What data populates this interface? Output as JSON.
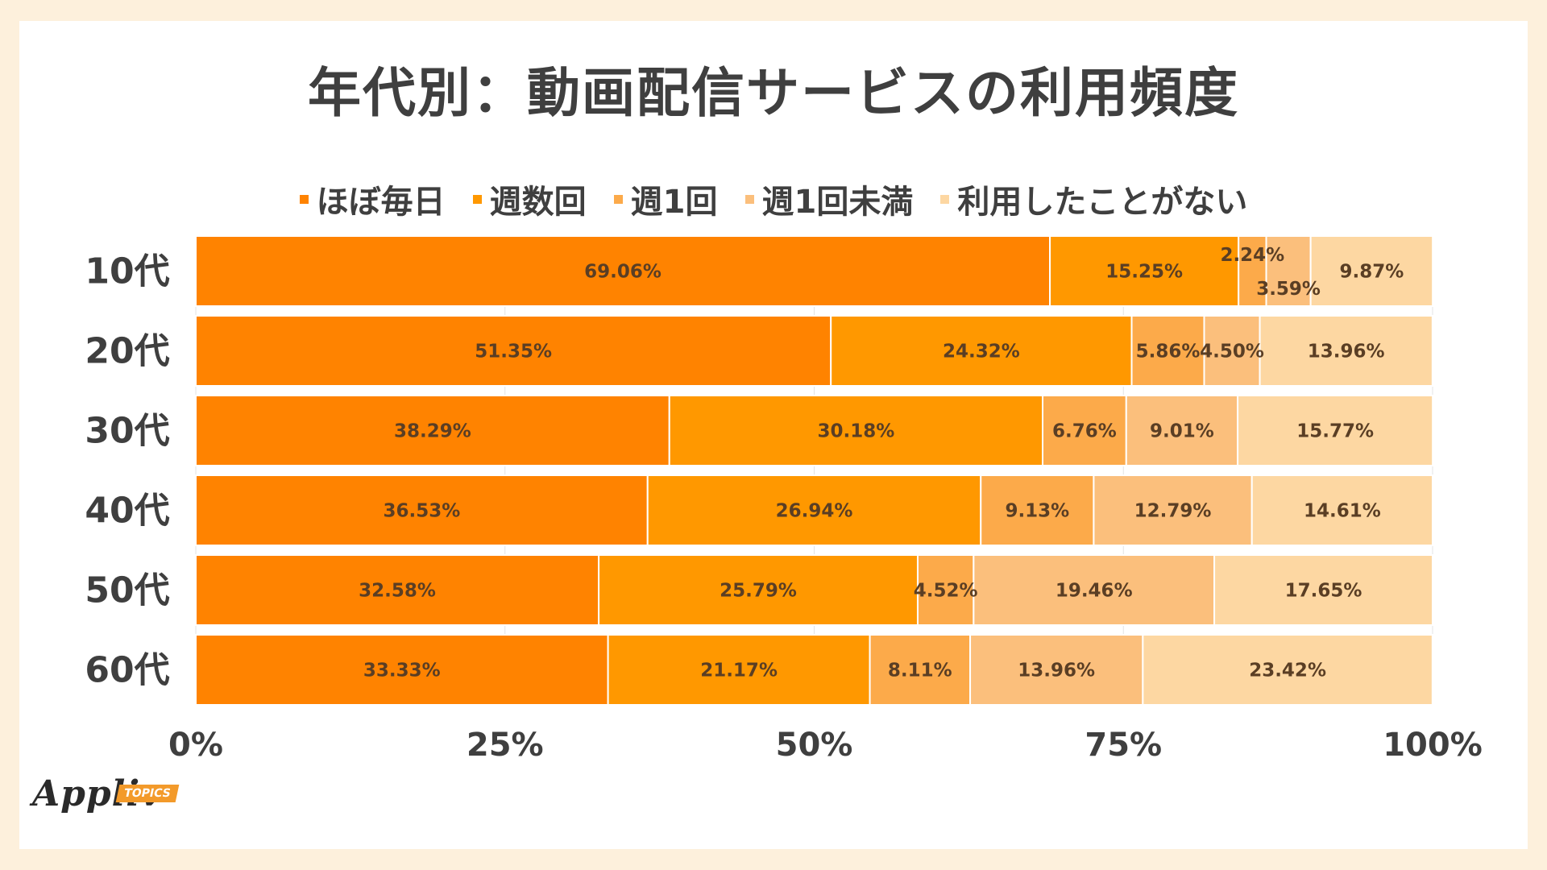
{
  "title": "年代別：動画配信サービスの利用頻度",
  "brand": {
    "logo_text": "Appliv",
    "badge_text": "TOPICS"
  },
  "chart_data": {
    "type": "bar",
    "orientation": "horizontal",
    "stacked": true,
    "title": "年代別：動画配信サービスの利用頻度",
    "categories": [
      "10代",
      "20代",
      "30代",
      "40代",
      "50代",
      "60代"
    ],
    "series": [
      {
        "name": "ほぼ毎日",
        "color": "#ff8300",
        "values": [
          69.06,
          51.35,
          38.29,
          36.53,
          32.58,
          33.33
        ]
      },
      {
        "name": "週数回",
        "color": "#ff9800",
        "values": [
          15.25,
          24.32,
          30.18,
          26.94,
          25.79,
          21.17
        ]
      },
      {
        "name": "週1回",
        "color": "#fcaa4a",
        "values": [
          2.24,
          5.86,
          6.76,
          9.13,
          4.52,
          8.11
        ]
      },
      {
        "name": "週1回未満",
        "color": "#fbbf7c",
        "values": [
          3.59,
          4.5,
          9.01,
          12.79,
          19.46,
          13.96
        ]
      },
      {
        "name": "利用したことがない",
        "color": "#fdd7a2",
        "values": [
          9.87,
          13.96,
          15.77,
          14.61,
          17.65,
          23.42
        ]
      }
    ],
    "data_labels": [
      [
        "69.06%",
        "15.25%",
        "2.24%",
        "3.59%",
        "9.87%"
      ],
      [
        "51.35%",
        "24.32%",
        "5.86%",
        "4.50%",
        "13.96%"
      ],
      [
        "38.29%",
        "30.18%",
        "6.76%",
        "9.01%",
        "15.77%"
      ],
      [
        "36.53%",
        "26.94%",
        "9.13%",
        "12.79%",
        "14.61%"
      ],
      [
        "32.58%",
        "25.79%",
        "4.52%",
        "19.46%",
        "17.65%"
      ],
      [
        "33.33%",
        "21.17%",
        "8.11%",
        "13.96%",
        "23.42%"
      ]
    ],
    "x_ticks": [
      "0%",
      "25%",
      "50%",
      "75%",
      "100%"
    ],
    "xlim": [
      0,
      100
    ],
    "legend_position": "top",
    "grid": true
  }
}
